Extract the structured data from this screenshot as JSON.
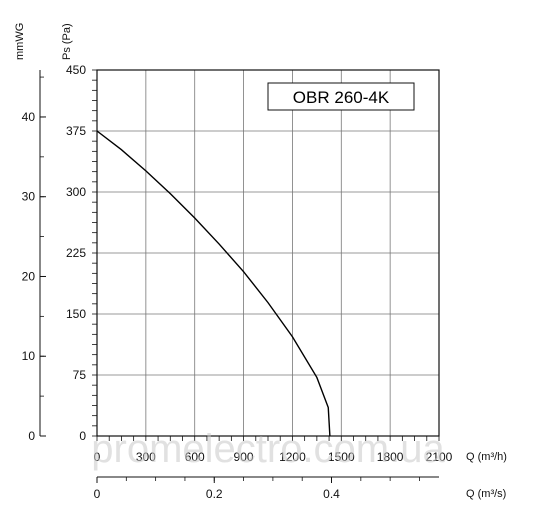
{
  "chart_data": {
    "type": "line",
    "title": "OBR 260-4K",
    "series": [
      {
        "x": [
          0,
          150,
          300,
          450,
          600,
          750,
          900,
          1050,
          1200,
          1350,
          1420,
          1430
        ],
        "y": [
          375,
          352,
          326,
          298,
          268,
          236,
          202,
          164,
          122,
          72,
          35,
          0
        ]
      }
    ],
    "pressure_axis": {
      "label": "Ps (Pa)",
      "ticks": [
        "450",
        "375",
        "300",
        "225",
        "150",
        "75",
        "0"
      ],
      "ylim": [
        0,
        450
      ]
    },
    "mmwg_axis": {
      "label": "mmWG",
      "ticks": [
        "40",
        "30",
        "20",
        "10",
        "0"
      ]
    },
    "flow_axis_m3h": {
      "label": "Q (m³/h)",
      "ticks": [
        "0",
        "300",
        "600",
        "900",
        "1200",
        "1500",
        "1800",
        "2100"
      ],
      "xlim": [
        0,
        2100
      ]
    },
    "flow_axis_m3s": {
      "label": "Q (m³/s)",
      "ticks": [
        "0",
        "0.2",
        "0.4"
      ]
    },
    "grid": true
  },
  "watermark": "promelectro.com.ua"
}
